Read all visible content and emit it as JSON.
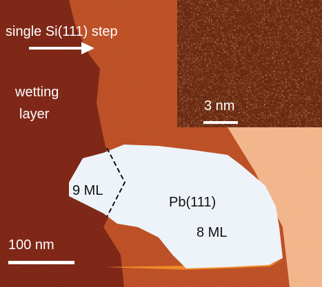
{
  "labels": {
    "step": "single Si(111) step",
    "wetting_line1": "wetting",
    "wetting_line2": "layer",
    "inset_scale": "3 nm",
    "island_edge": "9 ML",
    "island_name": "Pb(111)",
    "island_height": "8 ML",
    "main_scale": "100 nm"
  }
}
